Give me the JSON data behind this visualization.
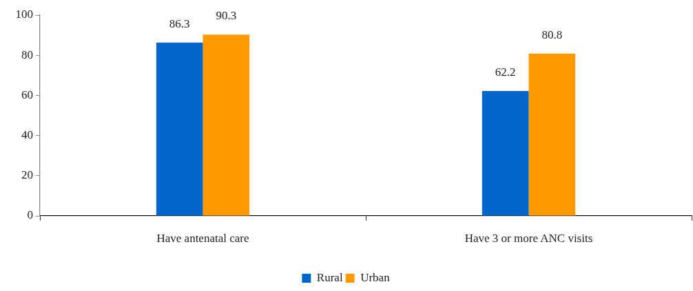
{
  "chart_data": {
    "type": "bar",
    "categories": [
      "Have antenatal care",
      "Have 3 or more ANC visits"
    ],
    "series": [
      {
        "name": "Rural",
        "color": "#0066cc",
        "values": [
          86.3,
          62.2
        ]
      },
      {
        "name": "Urban",
        "color": "#ff9900",
        "values": [
          90.3,
          80.8
        ]
      }
    ],
    "ylim": [
      0,
      100
    ],
    "yticks": [
      0,
      20,
      40,
      60,
      80,
      100
    ],
    "grid": false,
    "legend": "bottom",
    "data_labels": true
  }
}
